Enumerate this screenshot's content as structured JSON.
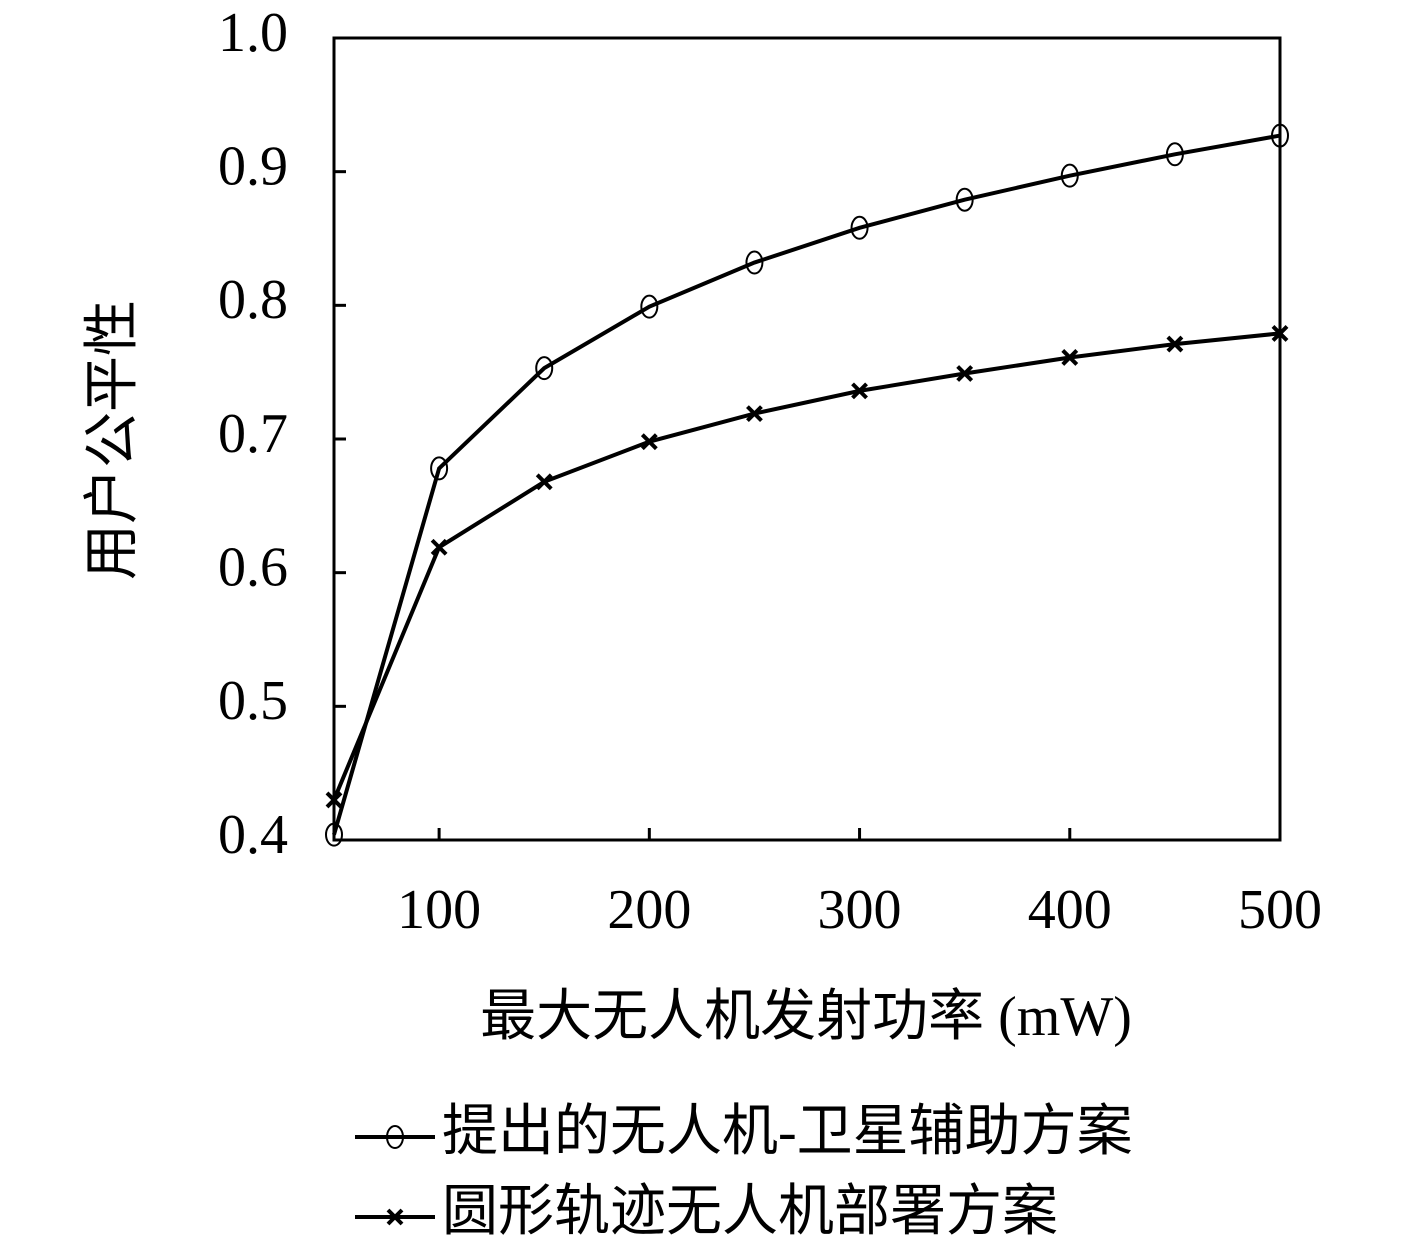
{
  "chart_data": {
    "type": "line",
    "x_label": "最大无人机发射功率 (mW)",
    "y_label": "用户公平性",
    "x": [
      50,
      100,
      150,
      200,
      250,
      300,
      350,
      400,
      450,
      500
    ],
    "series": [
      {
        "name": "提出的无人机-卫星辅助方案",
        "color": "#000000",
        "marker": "circle",
        "values": [
          0.404,
          0.678,
          0.753,
          0.799,
          0.832,
          0.858,
          0.879,
          0.897,
          0.913,
          0.927
        ]
      },
      {
        "name": "圆形轨迹无人机部署方案",
        "color": "#000000",
        "marker": "x",
        "values": [
          0.43,
          0.619,
          0.668,
          0.698,
          0.719,
          0.736,
          0.749,
          0.761,
          0.771,
          0.779
        ]
      }
    ],
    "xlim": [
      50,
      500
    ],
    "xticks": [
      100,
      200,
      300,
      400,
      500
    ],
    "ylim": [
      0.4,
      1.0
    ],
    "yticks": [
      0.4,
      0.5,
      0.6,
      0.7,
      0.8,
      0.9,
      {
        "value": 1,
        "label": "1.0"
      }
    ],
    "grid": false,
    "legend": "bottom"
  }
}
